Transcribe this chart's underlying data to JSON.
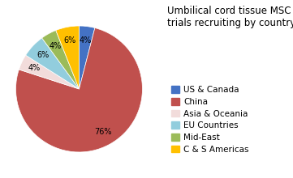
{
  "labels": [
    "US & Canada",
    "China",
    "Asia & Oceania",
    "EU Countries",
    "Mid-East",
    "C & S Americas"
  ],
  "values": [
    4,
    76,
    4,
    6,
    4,
    6
  ],
  "colors": [
    "#4472C4",
    "#C0504D",
    "#F2DCDB",
    "#92CDDD",
    "#9BBB59",
    "#FFC000"
  ],
  "title": "Umbilical cord tissue MSC\ntrials recruiting by country",
  "title_fontsize": 8.5,
  "legend_fontsize": 7.5,
  "autopct_fontsize": 7,
  "startangle": 90,
  "figsize": [
    3.61,
    2.2
  ],
  "dpi": 100
}
